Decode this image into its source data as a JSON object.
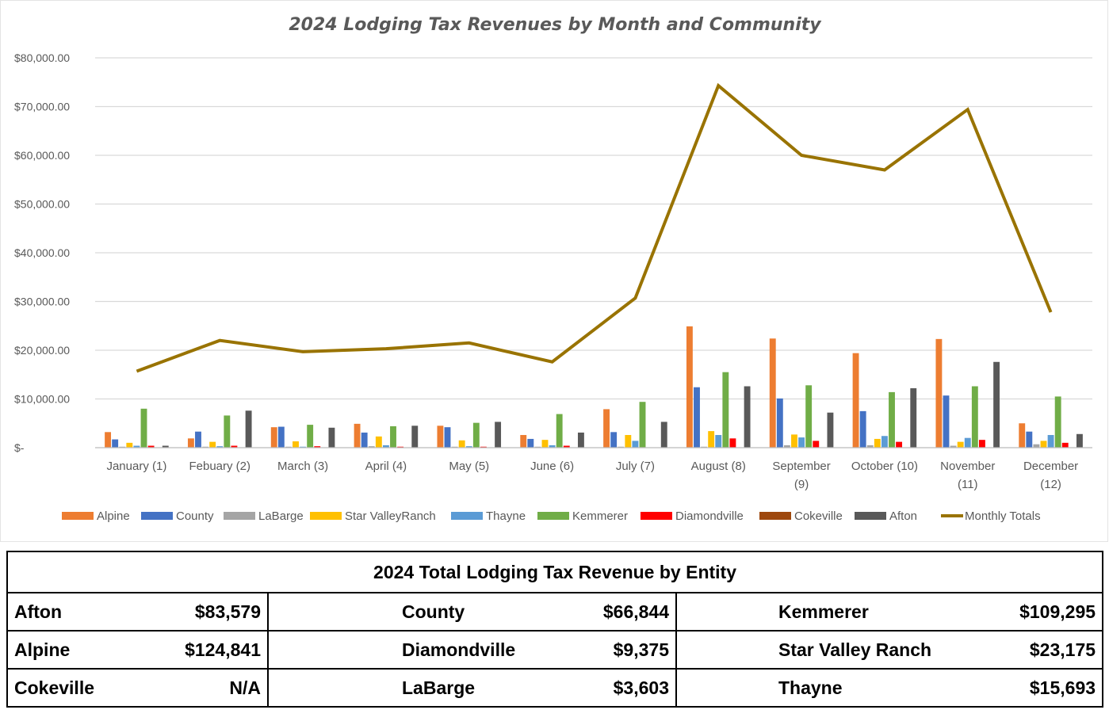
{
  "chart_data": {
    "type": "bar",
    "title": "2024 Lodging Tax Revenues by Month and Community",
    "categories": [
      "January (1)",
      "Febuary (2)",
      "March (3)",
      "April (4)",
      "May (5)",
      "June (6)",
      "July (7)",
      "August (8)",
      "September (9)",
      "October (10)",
      "November (11)",
      "December (12)"
    ],
    "category_lines": [
      [
        "January (1)"
      ],
      [
        "Febuary (2)"
      ],
      [
        "March (3)"
      ],
      [
        "April (4)"
      ],
      [
        "May (5)"
      ],
      [
        "June (6)"
      ],
      [
        "July (7)"
      ],
      [
        "August (8)"
      ],
      [
        "September",
        "(9)"
      ],
      [
        "October (10)"
      ],
      [
        "November",
        "(11)"
      ],
      [
        "December",
        "(12)"
      ]
    ],
    "yticks": [
      "$-",
      "$10,000.00",
      "$20,000.00",
      "$30,000.00",
      "$40,000.00",
      "$50,000.00",
      "$60,000.00",
      "$70,000.00",
      "$80,000.00"
    ],
    "ylim": [
      0,
      80000
    ],
    "grid": true,
    "legend_position": "bottom",
    "series": [
      {
        "name": "Alpine",
        "color": "#ED7D31",
        "type": "bar",
        "values": [
          3200,
          1900,
          4200,
          4900,
          4500,
          2600,
          7900,
          24900,
          22400,
          19400,
          22300,
          5000
        ]
      },
      {
        "name": "County",
        "color": "#4472C4",
        "type": "bar",
        "values": [
          1700,
          3300,
          4300,
          3100,
          4200,
          1800,
          3200,
          12400,
          10100,
          7500,
          10700,
          3300
        ]
      },
      {
        "name": "LaBarge",
        "color": "#A5A5A5",
        "type": "bar",
        "values": [
          200,
          200,
          200,
          300,
          200,
          200,
          200,
          200,
          500,
          500,
          400,
          700
        ]
      },
      {
        "name": "Star ValleyRanch",
        "color": "#FFC000",
        "type": "bar",
        "values": [
          1000,
          1200,
          1300,
          2300,
          1500,
          1600,
          2600,
          3400,
          2700,
          1800,
          1200,
          1400
        ]
      },
      {
        "name": "Thayne",
        "color": "#5B9BD5",
        "type": "bar",
        "values": [
          400,
          300,
          200,
          500,
          300,
          500,
          1400,
          2600,
          2100,
          2400,
          2000,
          2600
        ]
      },
      {
        "name": "Kemmerer",
        "color": "#70AD47",
        "type": "bar",
        "values": [
          8000,
          6600,
          4700,
          4400,
          5100,
          6900,
          9400,
          15500,
          12800,
          11400,
          12600,
          10500
        ]
      },
      {
        "name": "Diamondville",
        "color": "#FF0000",
        "type": "bar",
        "values": [
          400,
          400,
          300,
          200,
          200,
          400,
          0,
          1900,
          1400,
          1200,
          1600,
          1000
        ]
      },
      {
        "name": "Cokeville",
        "color": "#9E480E",
        "type": "bar",
        "values": [
          0,
          0,
          0,
          0,
          0,
          0,
          0,
          0,
          0,
          0,
          0,
          0
        ]
      },
      {
        "name": "Afton",
        "color": "#595959",
        "type": "bar",
        "values": [
          400,
          7600,
          4100,
          4500,
          5300,
          3100,
          5300,
          12600,
          7200,
          12200,
          17600,
          2800
        ]
      },
      {
        "name": "Monthly Totals",
        "color": "#997300",
        "type": "line",
        "values": [
          15700,
          22000,
          19700,
          20300,
          21500,
          17600,
          30700,
          74300,
          60000,
          57000,
          69400,
          27800
        ]
      }
    ]
  },
  "table": {
    "title": "2024 Total Lodging Tax Revenue by Entity",
    "rows": [
      [
        {
          "name": "Afton",
          "value": "$83,579"
        },
        {
          "name": "County",
          "value": "$66,844"
        },
        {
          "name": "Kemmerer",
          "value": "$109,295"
        }
      ],
      [
        {
          "name": "Alpine",
          "value": "$124,841"
        },
        {
          "name": "Diamondville",
          "value": "$9,375"
        },
        {
          "name": "Star Valley Ranch",
          "value": "$23,175"
        }
      ],
      [
        {
          "name": "Cokeville",
          "value": "N/A"
        },
        {
          "name": "LaBarge",
          "value": "$3,603"
        },
        {
          "name": "Thayne",
          "value": "$15,693"
        }
      ]
    ]
  }
}
